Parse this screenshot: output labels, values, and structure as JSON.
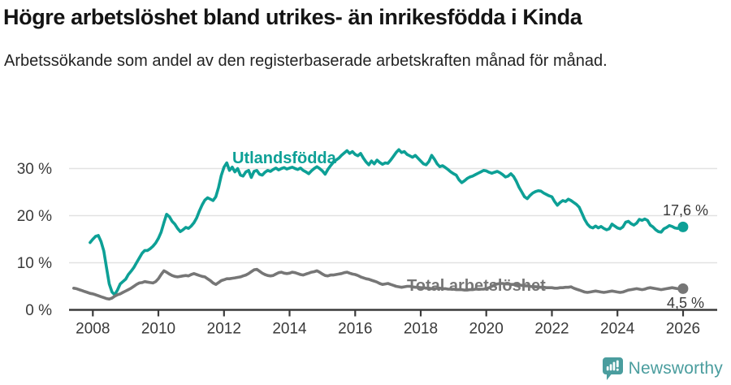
{
  "header": {
    "title": "Högre arbetslöshet bland utrikes- än inrikesfödda i Kinda",
    "subtitle": "Arbetssökande som andel av den registerbaserade arbetskraften månad för månad."
  },
  "chart_data": {
    "type": "line",
    "title": "Högre arbetslöshet bland utrikes- än inrikesfödda i Kinda",
    "subtitle": "Arbetssökande som andel av den registerbaserade arbetskraften månad för månad.",
    "unit": "%",
    "grid": "horizontal",
    "legend_position": "inline-labels",
    "xlim": [
      2007.3,
      2027.05
    ],
    "ylim": [
      0,
      35.5
    ],
    "x_ticks": [
      2008,
      2010,
      2012,
      2014,
      2016,
      2018,
      2020,
      2022,
      2024,
      2026
    ],
    "y_ticks": [
      {
        "value": 0,
        "label": "0 %"
      },
      {
        "value": 10,
        "label": "10 %"
      },
      {
        "value": 20,
        "label": "20 %"
      },
      {
        "value": 30,
        "label": "30 %"
      }
    ],
    "series": [
      {
        "id": "utlandsfodda",
        "name": "Utlandsfödda",
        "color": "#0da096",
        "x_start": 2007.917,
        "x_step_years": 0.08333,
        "end_value": 17.6,
        "end_label": "17,6 %",
        "values": [
          14.3,
          15.0,
          15.6,
          15.8,
          14.5,
          12.5,
          9.0,
          5.5,
          3.8,
          3.2,
          4.2,
          5.5,
          6.0,
          6.5,
          7.5,
          8.2,
          9.0,
          10.0,
          11.0,
          12.0,
          12.6,
          12.6,
          13.0,
          13.5,
          14.2,
          15.2,
          16.5,
          18.5,
          20.3,
          19.8,
          18.8,
          18.2,
          17.3,
          16.6,
          17.0,
          17.5,
          17.3,
          17.8,
          18.5,
          19.5,
          21.0,
          22.3,
          23.3,
          23.8,
          23.5,
          23.2,
          24.0,
          26.0,
          28.5,
          30.3,
          31.2,
          29.6,
          30.3,
          29.3,
          30.0,
          28.6,
          28.4,
          29.3,
          29.6,
          28.1,
          29.4,
          29.6,
          28.8,
          28.6,
          29.2,
          29.6,
          29.4,
          29.8,
          30.1,
          29.7,
          30.0,
          30.2,
          29.9,
          30.1,
          30.3,
          30.0,
          29.8,
          30.1,
          29.6,
          29.3,
          28.9,
          29.5,
          30.0,
          30.4,
          30.0,
          29.5,
          28.8,
          29.8,
          30.6,
          31.3,
          31.8,
          32.2,
          32.8,
          33.3,
          33.8,
          33.2,
          33.6,
          33.0,
          32.7,
          33.2,
          32.2,
          31.4,
          30.8,
          31.6,
          31.0,
          31.8,
          31.3,
          30.9,
          31.2,
          31.1,
          31.8,
          32.6,
          33.4,
          34.0,
          33.4,
          33.6,
          33.0,
          32.7,
          32.4,
          32.8,
          32.2,
          31.6,
          31.0,
          30.8,
          31.5,
          32.8,
          32.0,
          31.0,
          30.4,
          30.6,
          30.2,
          29.8,
          29.3,
          28.9,
          28.6,
          27.6,
          27.0,
          27.4,
          27.9,
          28.2,
          28.4,
          28.7,
          29.0,
          29.3,
          29.6,
          29.5,
          29.2,
          29.0,
          29.2,
          29.4,
          29.1,
          28.7,
          28.2,
          28.4,
          28.9,
          28.3,
          27.3,
          26.0,
          25.0,
          24.0,
          23.6,
          24.3,
          24.8,
          25.1,
          25.3,
          25.2,
          24.8,
          24.5,
          24.2,
          24.0,
          23.0,
          22.2,
          22.8,
          23.2,
          23.0,
          23.5,
          23.2,
          22.8,
          22.4,
          21.8,
          20.5,
          19.2,
          18.2,
          17.6,
          17.4,
          17.8,
          17.4,
          17.7,
          17.3,
          17.0,
          17.2,
          18.2,
          17.8,
          17.4,
          17.2,
          17.6,
          18.6,
          18.8,
          18.3,
          18.0,
          18.4,
          19.2,
          19.0,
          19.3,
          19.0,
          18.0,
          17.6,
          17.0,
          16.6,
          16.5,
          17.2,
          17.5,
          17.9,
          17.7,
          17.4,
          17.3,
          17.5,
          17.6
        ]
      },
      {
        "id": "total",
        "name": "Total arbetslöshet",
        "color": "#767676",
        "x_start": 2007.417,
        "x_step_years": 0.08333,
        "end_value": 4.5,
        "end_label": "4,5 %",
        "values": [
          4.6,
          4.5,
          4.3,
          4.1,
          3.9,
          3.7,
          3.5,
          3.4,
          3.2,
          3.0,
          2.8,
          2.6,
          2.4,
          2.3,
          2.5,
          2.9,
          3.2,
          3.4,
          3.7,
          4.0,
          4.3,
          4.6,
          5.0,
          5.4,
          5.7,
          5.8,
          6.0,
          5.9,
          5.8,
          5.7,
          6.0,
          6.6,
          7.5,
          8.3,
          8.0,
          7.6,
          7.3,
          7.1,
          7.0,
          7.1,
          7.2,
          7.3,
          7.2,
          7.5,
          7.7,
          7.5,
          7.3,
          7.1,
          7.0,
          6.6,
          6.2,
          5.7,
          5.4,
          5.8,
          6.2,
          6.4,
          6.6,
          6.6,
          6.7,
          6.8,
          6.9,
          7.0,
          7.2,
          7.4,
          7.7,
          8.1,
          8.5,
          8.6,
          8.2,
          7.8,
          7.5,
          7.3,
          7.2,
          7.3,
          7.6,
          7.9,
          8.0,
          7.8,
          7.7,
          7.8,
          8.0,
          7.9,
          7.7,
          7.5,
          7.4,
          7.6,
          7.8,
          8.0,
          8.1,
          8.3,
          8.0,
          7.6,
          7.3,
          7.2,
          7.4,
          7.4,
          7.5,
          7.6,
          7.7,
          7.9,
          8.0,
          7.8,
          7.6,
          7.5,
          7.3,
          7.0,
          6.8,
          6.6,
          6.5,
          6.3,
          6.1,
          5.9,
          5.6,
          5.4,
          5.5,
          5.6,
          5.4,
          5.2,
          5.0,
          4.9,
          4.8,
          4.9,
          5.0,
          5.0,
          4.9,
          4.8,
          4.8,
          4.7,
          4.7,
          4.6,
          4.6,
          4.5,
          4.5,
          4.6,
          4.6,
          4.5,
          4.5,
          4.4,
          4.4,
          4.4,
          4.3,
          4.3,
          4.3,
          4.2,
          4.2,
          4.3,
          4.3,
          4.4,
          4.4,
          4.4,
          4.4,
          4.5,
          4.7,
          5.0,
          5.3,
          5.5,
          5.6,
          5.6,
          5.5,
          5.5,
          5.4,
          5.4,
          5.3,
          5.3,
          5.2,
          5.1,
          5.1,
          5.0,
          4.9,
          4.9,
          4.8,
          4.8,
          4.8,
          4.7,
          4.7,
          4.7,
          4.6,
          4.6,
          4.7,
          4.7,
          4.8,
          4.8,
          4.9,
          4.6,
          4.4,
          4.2,
          4.0,
          3.8,
          3.7,
          3.8,
          3.9,
          4.0,
          3.9,
          3.8,
          3.7,
          3.8,
          3.9,
          4.0,
          3.9,
          3.8,
          3.7,
          3.8,
          4.0,
          4.2,
          4.3,
          4.4,
          4.5,
          4.4,
          4.3,
          4.4,
          4.6,
          4.7,
          4.6,
          4.5,
          4.4,
          4.3,
          4.4,
          4.5,
          4.6,
          4.7,
          4.6,
          4.5,
          4.5,
          4.5
        ]
      }
    ]
  },
  "footer": {
    "brand": "Newsworthy",
    "brand_color": "#4a9d9e",
    "logo_icon": "bar-chart-speech-bubble-icon"
  }
}
